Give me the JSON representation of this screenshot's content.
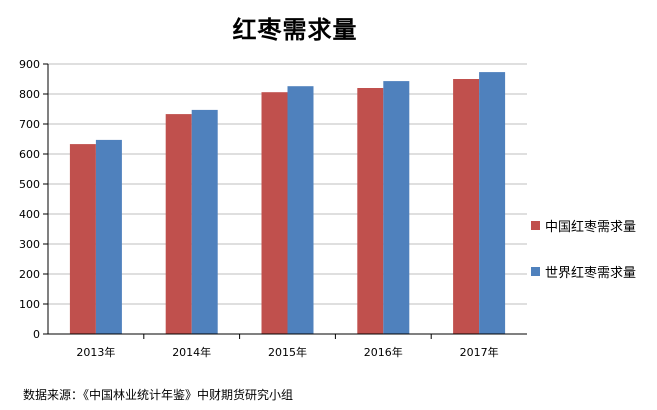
{
  "chart_data": {
    "type": "bar",
    "title": "红枣需求量",
    "categories": [
      "2013年",
      "2014年",
      "2015年",
      "2016年",
      "2017年"
    ],
    "series": [
      {
        "name": "中国红枣需求量",
        "color": "#c0504d",
        "values": [
          633,
          733,
          806,
          820,
          850
        ]
      },
      {
        "name": "世界红枣需求量",
        "color": "#4f81bd",
        "values": [
          647,
          747,
          826,
          843,
          873
        ]
      }
    ],
    "ylim": [
      0,
      900
    ],
    "yticks": [
      0,
      100,
      200,
      300,
      400,
      500,
      600,
      700,
      800,
      900
    ],
    "grid": true,
    "legend_position": "right"
  },
  "source_note": "数据来源：《中国林业统计年鉴》中财期货研究小组"
}
